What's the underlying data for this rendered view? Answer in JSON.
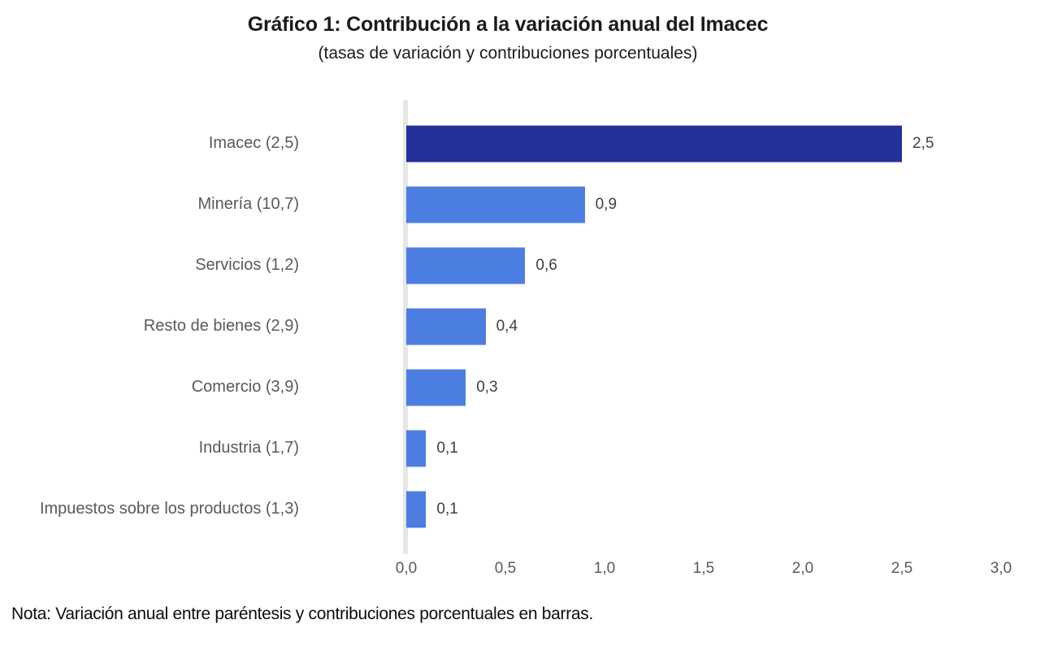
{
  "chart_data": {
    "type": "bar",
    "orientation": "horizontal",
    "title": "Gráfico 1: Contribución a la variación anual del Imacec",
    "subtitle": "(tasas de variación y contribuciones porcentuales)",
    "categories": [
      "Imacec (2,5)",
      "Minería (10,7)",
      "Servicios (1,2)",
      "Resto de bienes (2,9)",
      "Comercio (3,9)",
      "Industria (1,7)",
      "Impuestos sobre los productos (1,3)"
    ],
    "values": [
      2.5,
      0.9,
      0.6,
      0.4,
      0.3,
      0.1,
      0.1
    ],
    "value_labels": [
      "2,5",
      "0,9",
      "0,6",
      "0,4",
      "0,3",
      "0,1",
      "0,1"
    ],
    "annual_variation_in_parentheses": [
      2.5,
      10.7,
      1.2,
      2.9,
      3.9,
      1.7,
      1.3
    ],
    "bar_colors": [
      "#24309C",
      "#4C7EE2",
      "#4C7EE2",
      "#4C7EE2",
      "#4C7EE2",
      "#4C7EE2",
      "#4C7EE2"
    ],
    "x_ticks": [
      "0,0",
      "0,5",
      "1,0",
      "1,5",
      "2,0",
      "2,5",
      "3,0"
    ],
    "xlim": [
      0,
      3.0
    ],
    "xlabel": "",
    "ylabel": "",
    "grid": false,
    "legend": false,
    "colors": {
      "highlight_bar": "#24309C",
      "sector_bar": "#4C7EE2",
      "axis_line": "#E6E6E6",
      "category_text": "#595959",
      "value_text": "#404040",
      "tick_text": "#595959",
      "title_text": "#1b1b1b"
    },
    "note": "Nota: Variación anual entre paréntesis y contribuciones porcentuales en barras."
  }
}
